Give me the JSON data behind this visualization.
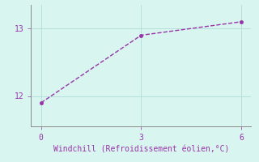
{
  "x": [
    0,
    3,
    6
  ],
  "y": [
    11.9,
    12.9,
    13.1
  ],
  "line_color": "#9933aa",
  "marker_color": "#9933aa",
  "bg_color": "#d8f5f0",
  "grid_color": "#b0ddd8",
  "axis_color": "#888888",
  "tick_color": "#9933aa",
  "xlabel": "Windchill (Refroidissement éolien,°C)",
  "xlabel_color": "#9933aa",
  "xlabel_fontsize": 7,
  "xticks": [
    0,
    3,
    6
  ],
  "yticks": [
    12,
    13
  ],
  "xlim": [
    -0.3,
    6.3
  ],
  "ylim": [
    11.55,
    13.35
  ],
  "marker_size": 3,
  "line_width": 1.0,
  "tick_fontsize": 7,
  "linestyle": "--"
}
